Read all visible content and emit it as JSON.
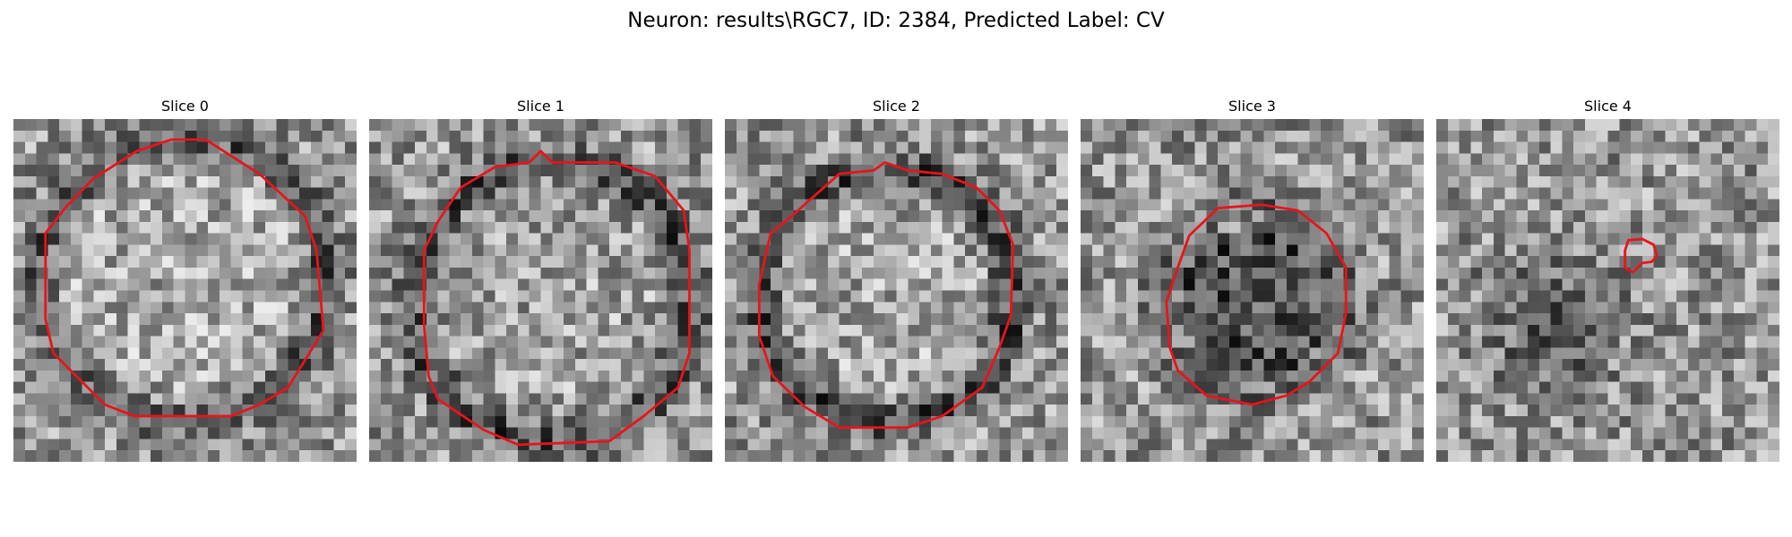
{
  "figure": {
    "title": "Neuron: results\\RGC7, ID: 2384, Predicted Label: CV"
  },
  "colors": {
    "contour": "#e8141c",
    "background": "#ffffff",
    "colormap": "gray"
  },
  "slices": [
    {
      "title": "Slice 0"
    },
    {
      "title": "Slice 1"
    },
    {
      "title": "Slice 2"
    },
    {
      "title": "Slice 3"
    },
    {
      "title": "Slice 4"
    }
  ]
}
